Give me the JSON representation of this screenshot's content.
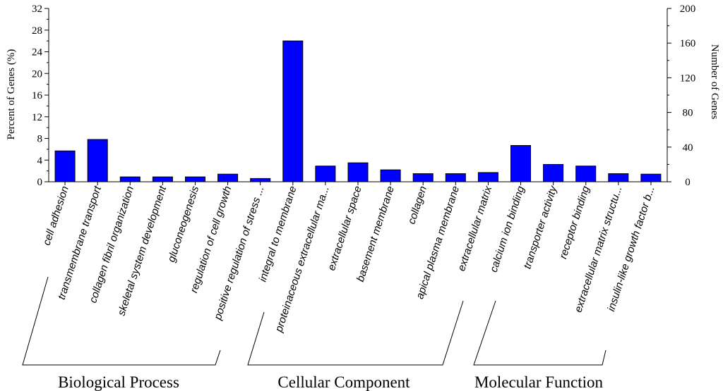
{
  "chart_data": {
    "type": "bar",
    "categories": [
      "cell adhesion",
      "transmembrane transport",
      "collagen fibril organization",
      "skeletal system development",
      "gluconeogenesis",
      "regulation of cell growth",
      "positive regulation of stress ...",
      "integral to membrane",
      "proteinaceous extracellular ma...",
      "extracellular space",
      "basement membrane",
      "collagen",
      "apical plasma membrane",
      "extracellular matrix",
      "calcium ion binding",
      "transporter activity",
      "receptor binding",
      "extracellular matrix structu...",
      "insulin-like growth factor b..."
    ],
    "values": [
      5.7,
      7.8,
      0.9,
      0.9,
      0.9,
      1.4,
      0.6,
      26.0,
      2.9,
      3.5,
      2.2,
      1.5,
      1.5,
      1.7,
      6.7,
      3.2,
      2.9,
      1.5,
      1.4
    ],
    "ylabel": "Percent of Genes (%)",
    "y2label": "Number of Genes",
    "ylim": [
      0,
      32
    ],
    "y2lim": [
      0,
      200
    ],
    "yticks": [
      "0",
      "4",
      "8",
      "12",
      "16",
      "20",
      "24",
      "28",
      "32"
    ],
    "y2ticks": [
      "0",
      "40",
      "80",
      "120",
      "160",
      "200"
    ],
    "bar_color": "#0000ff",
    "groups": [
      {
        "name": "Biological Process",
        "start": 0,
        "end": 6
      },
      {
        "name": "Cellular Component",
        "start": 7,
        "end": 13
      },
      {
        "name": "Molecular Function",
        "start": 14,
        "end": 18
      }
    ]
  }
}
